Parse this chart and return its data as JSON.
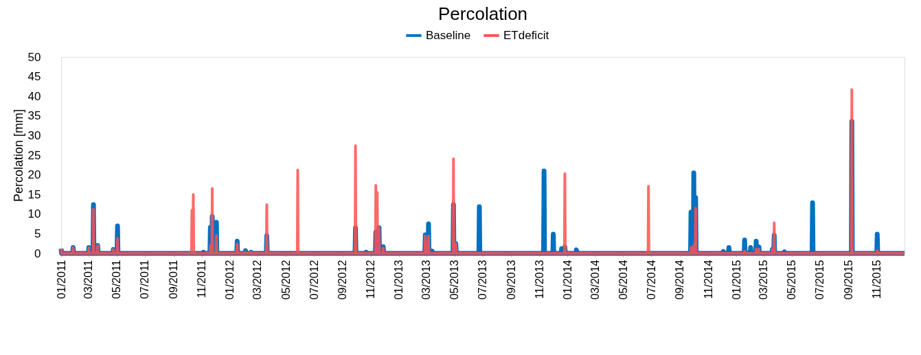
{
  "chart_data": {
    "type": "line",
    "title": "Percolation",
    "ylabel": "Percolation [mm]",
    "legend": "top",
    "grid": false,
    "marker": "none",
    "line_style": "solid",
    "xlim": [
      "2011-01-01",
      "2015-12-31"
    ],
    "xticks": [
      {
        "value": "2011-01-01",
        "label": "01/2011"
      },
      {
        "value": "2011-03-01",
        "label": "03/2011"
      },
      {
        "value": "2011-05-01",
        "label": "05/2011"
      },
      {
        "value": "2011-07-01",
        "label": "07/2011"
      },
      {
        "value": "2011-09-01",
        "label": "09/2011"
      },
      {
        "value": "2011-11-01",
        "label": "11/2011"
      },
      {
        "value": "2012-01-01",
        "label": "01/2012"
      },
      {
        "value": "2012-03-01",
        "label": "03/2012"
      },
      {
        "value": "2012-05-01",
        "label": "05/2012"
      },
      {
        "value": "2012-07-01",
        "label": "07/2012"
      },
      {
        "value": "2012-09-01",
        "label": "09/2012"
      },
      {
        "value": "2012-11-01",
        "label": "11/2012"
      },
      {
        "value": "2013-01-01",
        "label": "01/2013"
      },
      {
        "value": "2013-03-01",
        "label": "03/2013"
      },
      {
        "value": "2013-05-01",
        "label": "05/2013"
      },
      {
        "value": "2013-07-01",
        "label": "07/2013"
      },
      {
        "value": "2013-09-01",
        "label": "09/2013"
      },
      {
        "value": "2013-11-01",
        "label": "11/2013"
      },
      {
        "value": "2014-01-01",
        "label": "01/2014"
      },
      {
        "value": "2014-03-01",
        "label": "03/2014"
      },
      {
        "value": "2014-05-01",
        "label": "05/2014"
      },
      {
        "value": "2014-07-01",
        "label": "07/2014"
      },
      {
        "value": "2014-09-01",
        "label": "09/2014"
      },
      {
        "value": "2014-11-01",
        "label": "11/2014"
      },
      {
        "value": "2015-01-01",
        "label": "01/2015"
      },
      {
        "value": "2015-03-01",
        "label": "03/2015"
      },
      {
        "value": "2015-05-01",
        "label": "05/2015"
      },
      {
        "value": "2015-07-01",
        "label": "07/2015"
      },
      {
        "value": "2015-09-01",
        "label": "09/2015"
      },
      {
        "value": "2015-11-01",
        "label": "11/2015"
      }
    ],
    "ylim": [
      0,
      50
    ],
    "yticks": [
      0,
      5,
      10,
      15,
      20,
      25,
      30,
      35,
      40,
      45,
      50
    ],
    "x": [
      "2011-01-01",
      "2011-01-02",
      "2011-01-26",
      "2011-01-27",
      "2011-01-28",
      "2011-03-01",
      "2011-03-02",
      "2011-03-03",
      "2011-03-11",
      "2011-03-12",
      "2011-03-13",
      "2011-03-20",
      "2011-03-21",
      "2011-03-22",
      "2011-04-23",
      "2011-04-24",
      "2011-04-25",
      "2011-05-02",
      "2011-05-03",
      "2011-05-04",
      "2011-10-10",
      "2011-10-11",
      "2011-10-12",
      "2011-10-13",
      "2011-10-14",
      "2011-10-15",
      "2011-11-04",
      "2011-11-05",
      "2011-11-06",
      "2011-11-19",
      "2011-11-20",
      "2011-11-21",
      "2011-11-23",
      "2011-11-24",
      "2011-11-25",
      "2011-12-02",
      "2011-12-03",
      "2011-12-04",
      "2012-01-16",
      "2012-01-17",
      "2012-01-18",
      "2012-02-03",
      "2012-02-04",
      "2012-02-05",
      "2012-02-15",
      "2012-02-16",
      "2012-02-17",
      "2012-03-20",
      "2012-03-21",
      "2012-03-22",
      "2012-05-26",
      "2012-05-27",
      "2012-05-28",
      "2012-09-28",
      "2012-09-29",
      "2012-09-30",
      "2012-10-21",
      "2012-10-22",
      "2012-10-23",
      "2012-11-11",
      "2012-11-12",
      "2012-11-13",
      "2012-11-14",
      "2012-11-15",
      "2012-11-16",
      "2012-11-18",
      "2012-11-19",
      "2012-11-20",
      "2012-11-27",
      "2012-11-28",
      "2012-11-29",
      "2013-02-26",
      "2013-02-27",
      "2013-02-28",
      "2013-03-05",
      "2013-03-06",
      "2013-03-07",
      "2013-03-13",
      "2013-03-14",
      "2013-03-15",
      "2013-04-28",
      "2013-04-29",
      "2013-04-30",
      "2013-05-03",
      "2013-05-04",
      "2013-05-05",
      "2013-06-23",
      "2013-06-24",
      "2013-06-25",
      "2013-11-10",
      "2013-11-11",
      "2013-11-12",
      "2013-11-30",
      "2013-12-01",
      "2013-12-02",
      "2013-12-18",
      "2013-12-19",
      "2013-12-20",
      "2013-12-25",
      "2013-12-26",
      "2013-12-27",
      "2014-01-19",
      "2014-01-20",
      "2014-01-21",
      "2014-06-24",
      "2014-06-25",
      "2014-06-26",
      "2014-09-24",
      "2014-09-25",
      "2014-09-26",
      "2014-09-30",
      "2014-10-01",
      "2014-10-02",
      "2014-10-04",
      "2014-10-05",
      "2014-10-06",
      "2014-12-03",
      "2014-12-04",
      "2014-12-05",
      "2014-12-15",
      "2014-12-16",
      "2014-12-17",
      "2015-01-18",
      "2015-01-19",
      "2015-01-20",
      "2015-01-31",
      "2015-02-01",
      "2015-02-02",
      "2015-02-12",
      "2015-02-13",
      "2015-02-14",
      "2015-02-18",
      "2015-02-19",
      "2015-02-20",
      "2015-03-19",
      "2015-03-20",
      "2015-03-21",
      "2015-03-23",
      "2015-03-24",
      "2015-03-25",
      "2015-04-14",
      "2015-04-15",
      "2015-04-16",
      "2015-06-14",
      "2015-06-15",
      "2015-06-16",
      "2015-09-07",
      "2015-09-08",
      "2015-09-09",
      "2015-11-01",
      "2015-11-02",
      "2015-11-03",
      "2015-12-31"
    ],
    "series": [
      {
        "name": "Baseline",
        "color": "#0070c0",
        "values": [
          1.2,
          0,
          0,
          1.5,
          0,
          0,
          1.5,
          0,
          0,
          12.4,
          0,
          0,
          2,
          0,
          0,
          1,
          0,
          0,
          7,
          0,
          0,
          0,
          0,
          0,
          0,
          0,
          0,
          0.3,
          0,
          0,
          6.6,
          0,
          0,
          9.4,
          0,
          0,
          7.9,
          0,
          0,
          3.1,
          0,
          0,
          0.7,
          0,
          0,
          0.3,
          0,
          0,
          4.5,
          0,
          0,
          0,
          0,
          0,
          6.5,
          0,
          0,
          0.3,
          0,
          0,
          5.4,
          0,
          0,
          5.6,
          0,
          0,
          6.5,
          0,
          0,
          1.7,
          0,
          0,
          4.7,
          0,
          0,
          7.5,
          0,
          0,
          0.6,
          0,
          0,
          12.4,
          0,
          0,
          2.5,
          0,
          0,
          11.9,
          0,
          0,
          21,
          0,
          0,
          4.9,
          0,
          0,
          1.2,
          0,
          0,
          1.6,
          0,
          0,
          0.9,
          0,
          0,
          0,
          0,
          0,
          10.5,
          0,
          0,
          20.5,
          0,
          0,
          14.2,
          0,
          0,
          0.5,
          0,
          0,
          1.5,
          0,
          0,
          3.4,
          0,
          0,
          1.5,
          0,
          0,
          3.1,
          0,
          0,
          1.6,
          0,
          0,
          1,
          0,
          0,
          4.6,
          0,
          0,
          0.4,
          0,
          0,
          12.9,
          0,
          0,
          33.6,
          0,
          0,
          4.9,
          0,
          0
        ]
      },
      {
        "name": "ETdeficit",
        "color": "#ff5050",
        "values": [
          1.2,
          0,
          0,
          1.5,
          0,
          0,
          1.5,
          0,
          0,
          11.2,
          0,
          0,
          2,
          0,
          0,
          1,
          0,
          0,
          3.8,
          0,
          0,
          11,
          0,
          0,
          15,
          0,
          0,
          0,
          0,
          0,
          2,
          0,
          0,
          16.5,
          0,
          0,
          4.5,
          0,
          0,
          2.4,
          0,
          0,
          0.3,
          0,
          0,
          0.3,
          0,
          0,
          12.4,
          0,
          0,
          21.2,
          0,
          0,
          27.4,
          0,
          0,
          0,
          0,
          0,
          17.3,
          0,
          0,
          15.5,
          0,
          0,
          6.5,
          0,
          0,
          1.3,
          0,
          0,
          4.4,
          0,
          0,
          4.4,
          0,
          0,
          0,
          0,
          0,
          24.1,
          0,
          0,
          2.5,
          0,
          0,
          0,
          0,
          0,
          0,
          0,
          0,
          0,
          0,
          0,
          0,
          0,
          0,
          20.3,
          0,
          0,
          0,
          0,
          0,
          17.1,
          0,
          0,
          1.5,
          0,
          0,
          2,
          0,
          0,
          11.5,
          0,
          0,
          0,
          0,
          0,
          0,
          0,
          0,
          0.5,
          0,
          0,
          0,
          0,
          0,
          1.1,
          0,
          0,
          1.1,
          0,
          0,
          1,
          0,
          0,
          7.8,
          0,
          0,
          0,
          0,
          0,
          0,
          0,
          0,
          41.7,
          0,
          0,
          0.7,
          0,
          0
        ]
      }
    ]
  }
}
